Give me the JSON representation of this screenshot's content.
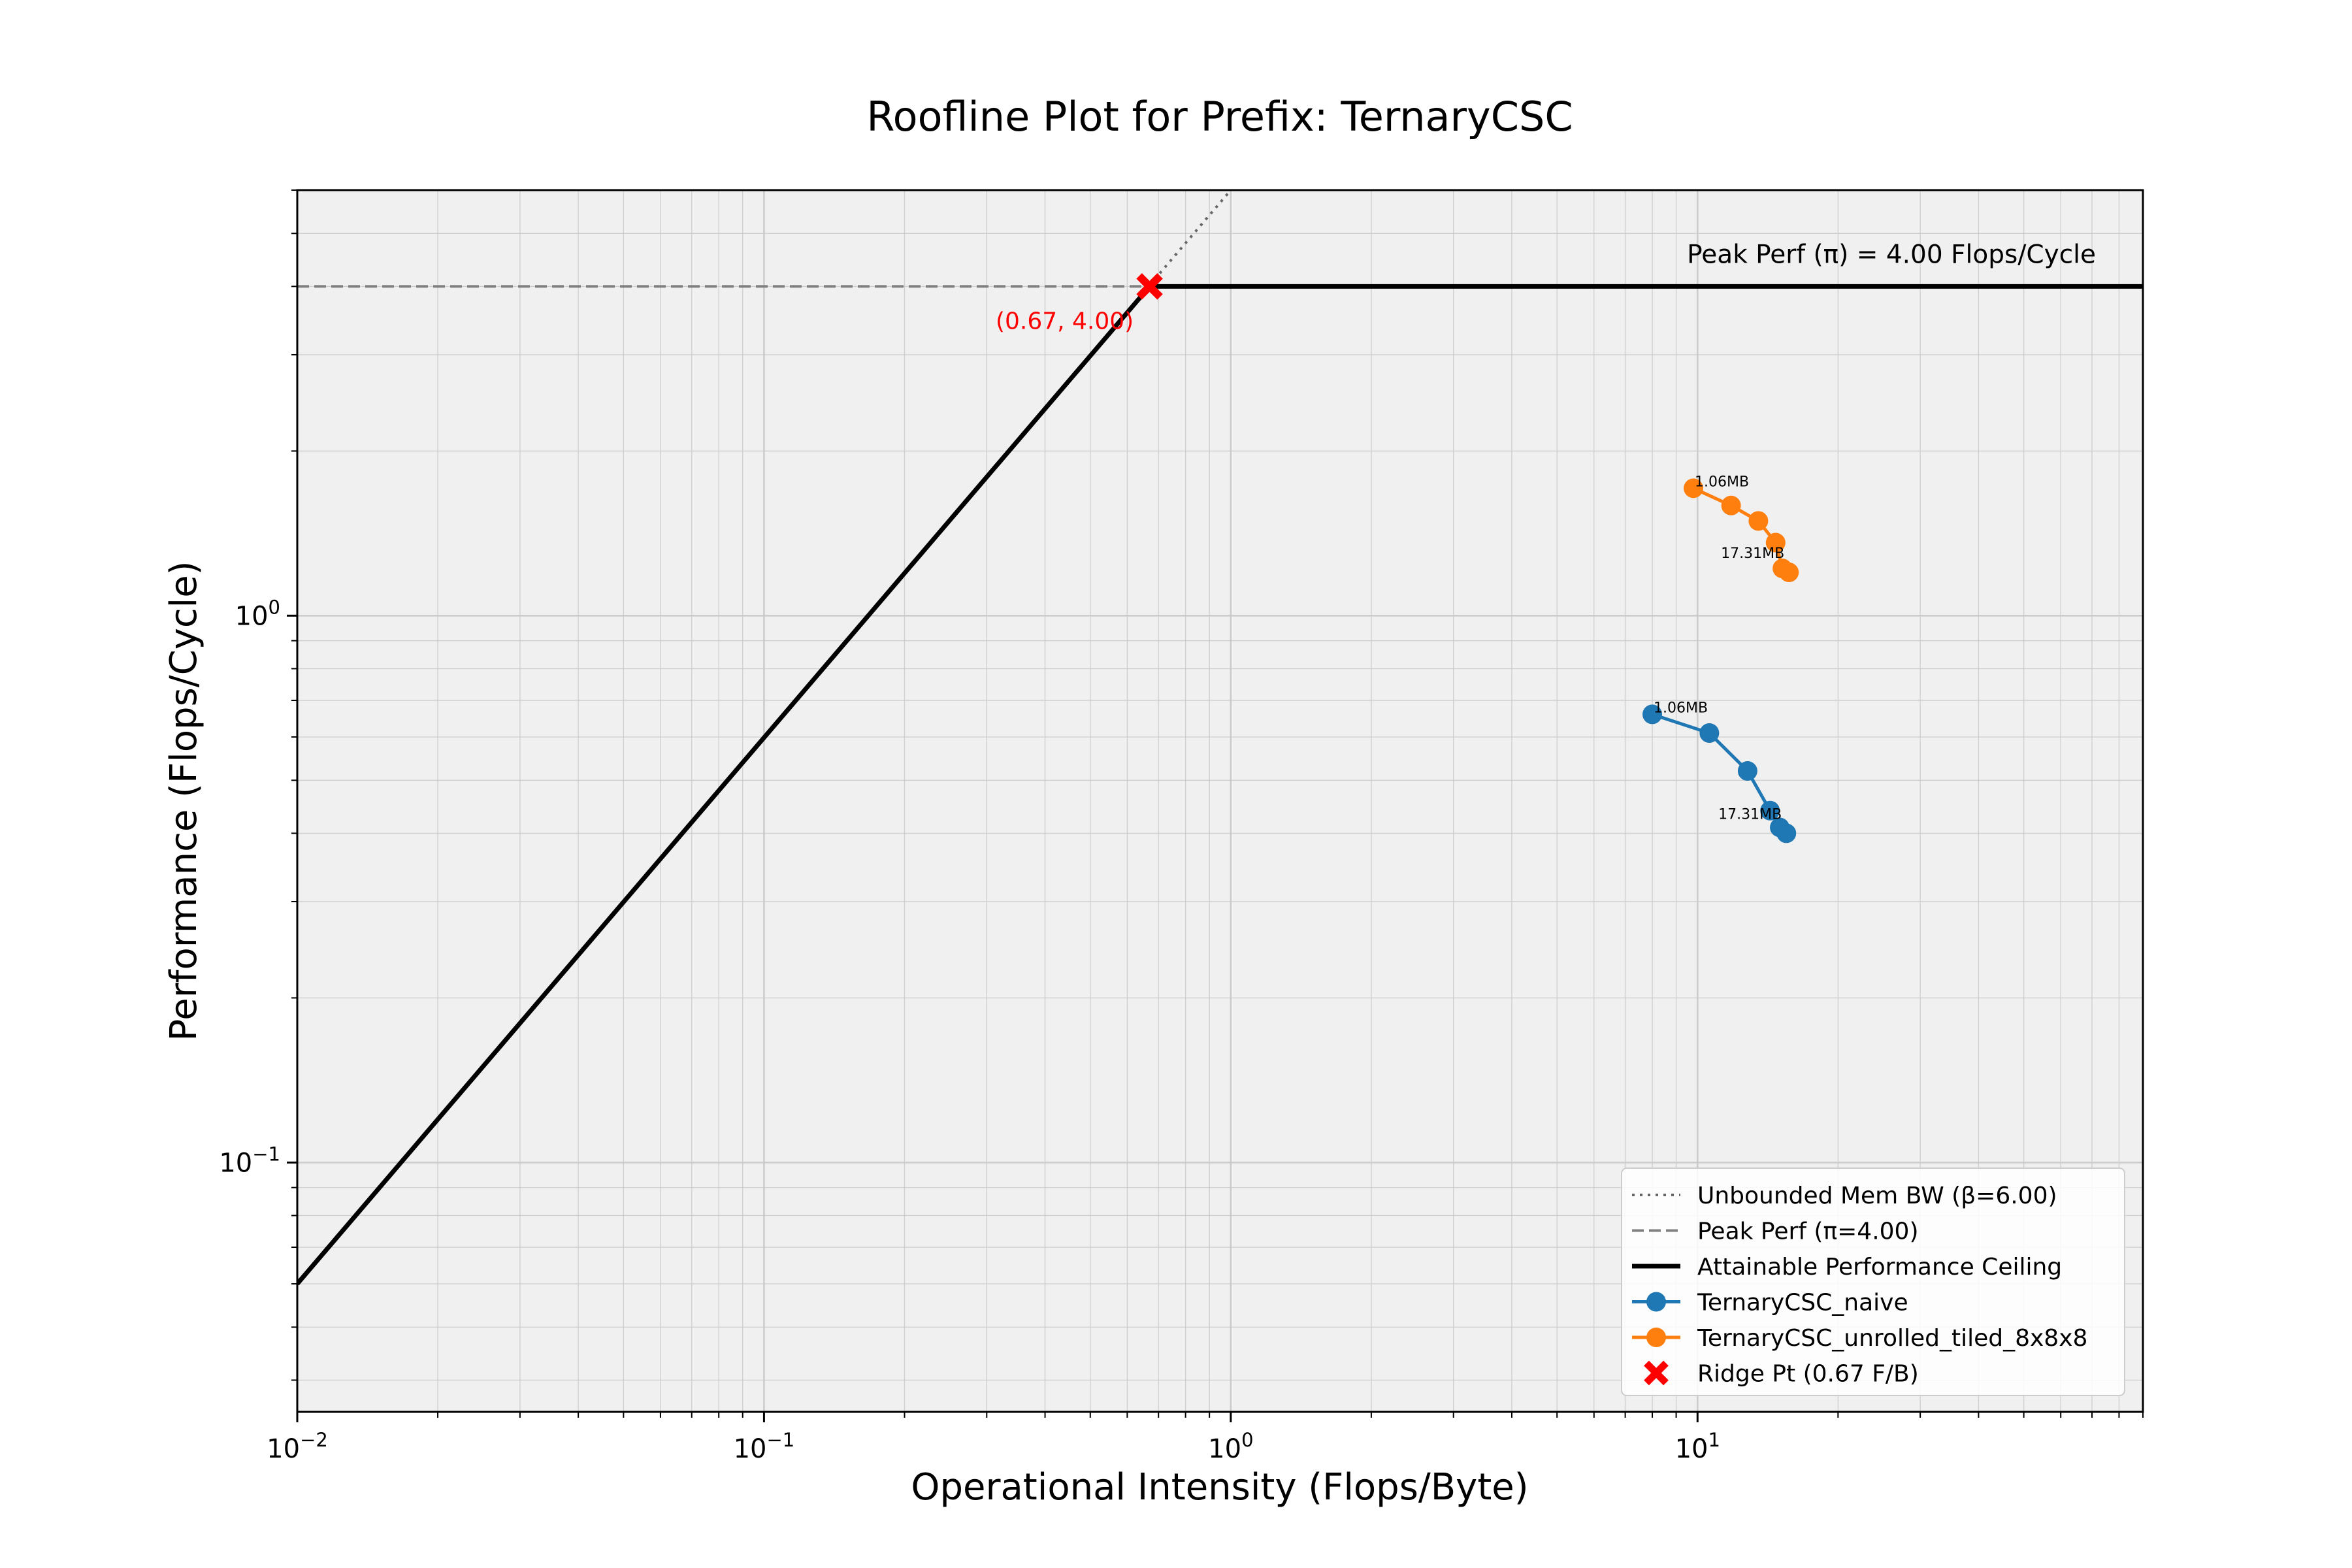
{
  "chart_data": {
    "type": "line",
    "title": "Roofline Plot for Prefix: TernaryCSC",
    "xlabel": "Operational Intensity (Flops/Byte)",
    "ylabel": "Performance (Flops/Cycle)",
    "xscale": "log",
    "yscale": "log",
    "xlim": [
      0.01,
      90
    ],
    "ylim": [
      0.035,
      6.0
    ],
    "grid": true,
    "legend_position": "lower right",
    "x_tick_labels": [
      {
        "base": "10",
        "exp": "−2",
        "value": 0.01
      },
      {
        "base": "10",
        "exp": "−1",
        "value": 0.1
      },
      {
        "base": "10",
        "exp": "0",
        "value": 1
      },
      {
        "base": "10",
        "exp": "1",
        "value": 10
      }
    ],
    "y_tick_labels": [
      {
        "base": "10",
        "exp": "−1",
        "value": 0.1
      },
      {
        "base": "10",
        "exp": "0",
        "value": 1
      }
    ],
    "peak_perf": 4.0,
    "mem_bw": 6.0,
    "ridge_point": {
      "x": 0.67,
      "y": 4.0,
      "label": "(0.67, 4.00)"
    },
    "peak_annotation": "Peak Perf (π) = 4.00 Flops/Cycle",
    "legend": [
      {
        "label": "Unbounded Mem BW (β=6.00)",
        "style": "dotted",
        "color": "#666666"
      },
      {
        "label": "Peak Perf (π=4.00)",
        "style": "dashed",
        "color": "#808080"
      },
      {
        "label": "Attainable Performance Ceiling",
        "style": "solid",
        "color": "#000000"
      },
      {
        "label": "TernaryCSC_naive",
        "style": "marker-line",
        "color": "#1f77b4"
      },
      {
        "label": "TernaryCSC_unrolled_tiled_8x8x8",
        "style": "marker-line",
        "color": "#ff7f0e"
      },
      {
        "label": "Ridge Pt (0.67 F/B)",
        "style": "x-marker",
        "color": "#ff0000"
      }
    ],
    "series": [
      {
        "name": "TernaryCSC_naive",
        "color": "#1f77b4",
        "x": [
          8.0,
          10.6,
          12.8,
          14.3,
          15.0,
          15.5
        ],
        "y": [
          0.66,
          0.61,
          0.52,
          0.44,
          0.41,
          0.4
        ],
        "annotations": [
          {
            "index": 0,
            "text": "1.06MB"
          },
          {
            "index": 5,
            "text": "17.31MB"
          }
        ]
      },
      {
        "name": "TernaryCSC_unrolled_tiled_8x8x8",
        "color": "#ff7f0e",
        "x": [
          9.8,
          11.8,
          13.5,
          14.7,
          15.2,
          15.7
        ],
        "y": [
          1.71,
          1.59,
          1.49,
          1.36,
          1.22,
          1.2
        ],
        "annotations": [
          {
            "index": 0,
            "text": "1.06MB"
          },
          {
            "index": 5,
            "text": "17.31MB"
          }
        ]
      }
    ]
  }
}
